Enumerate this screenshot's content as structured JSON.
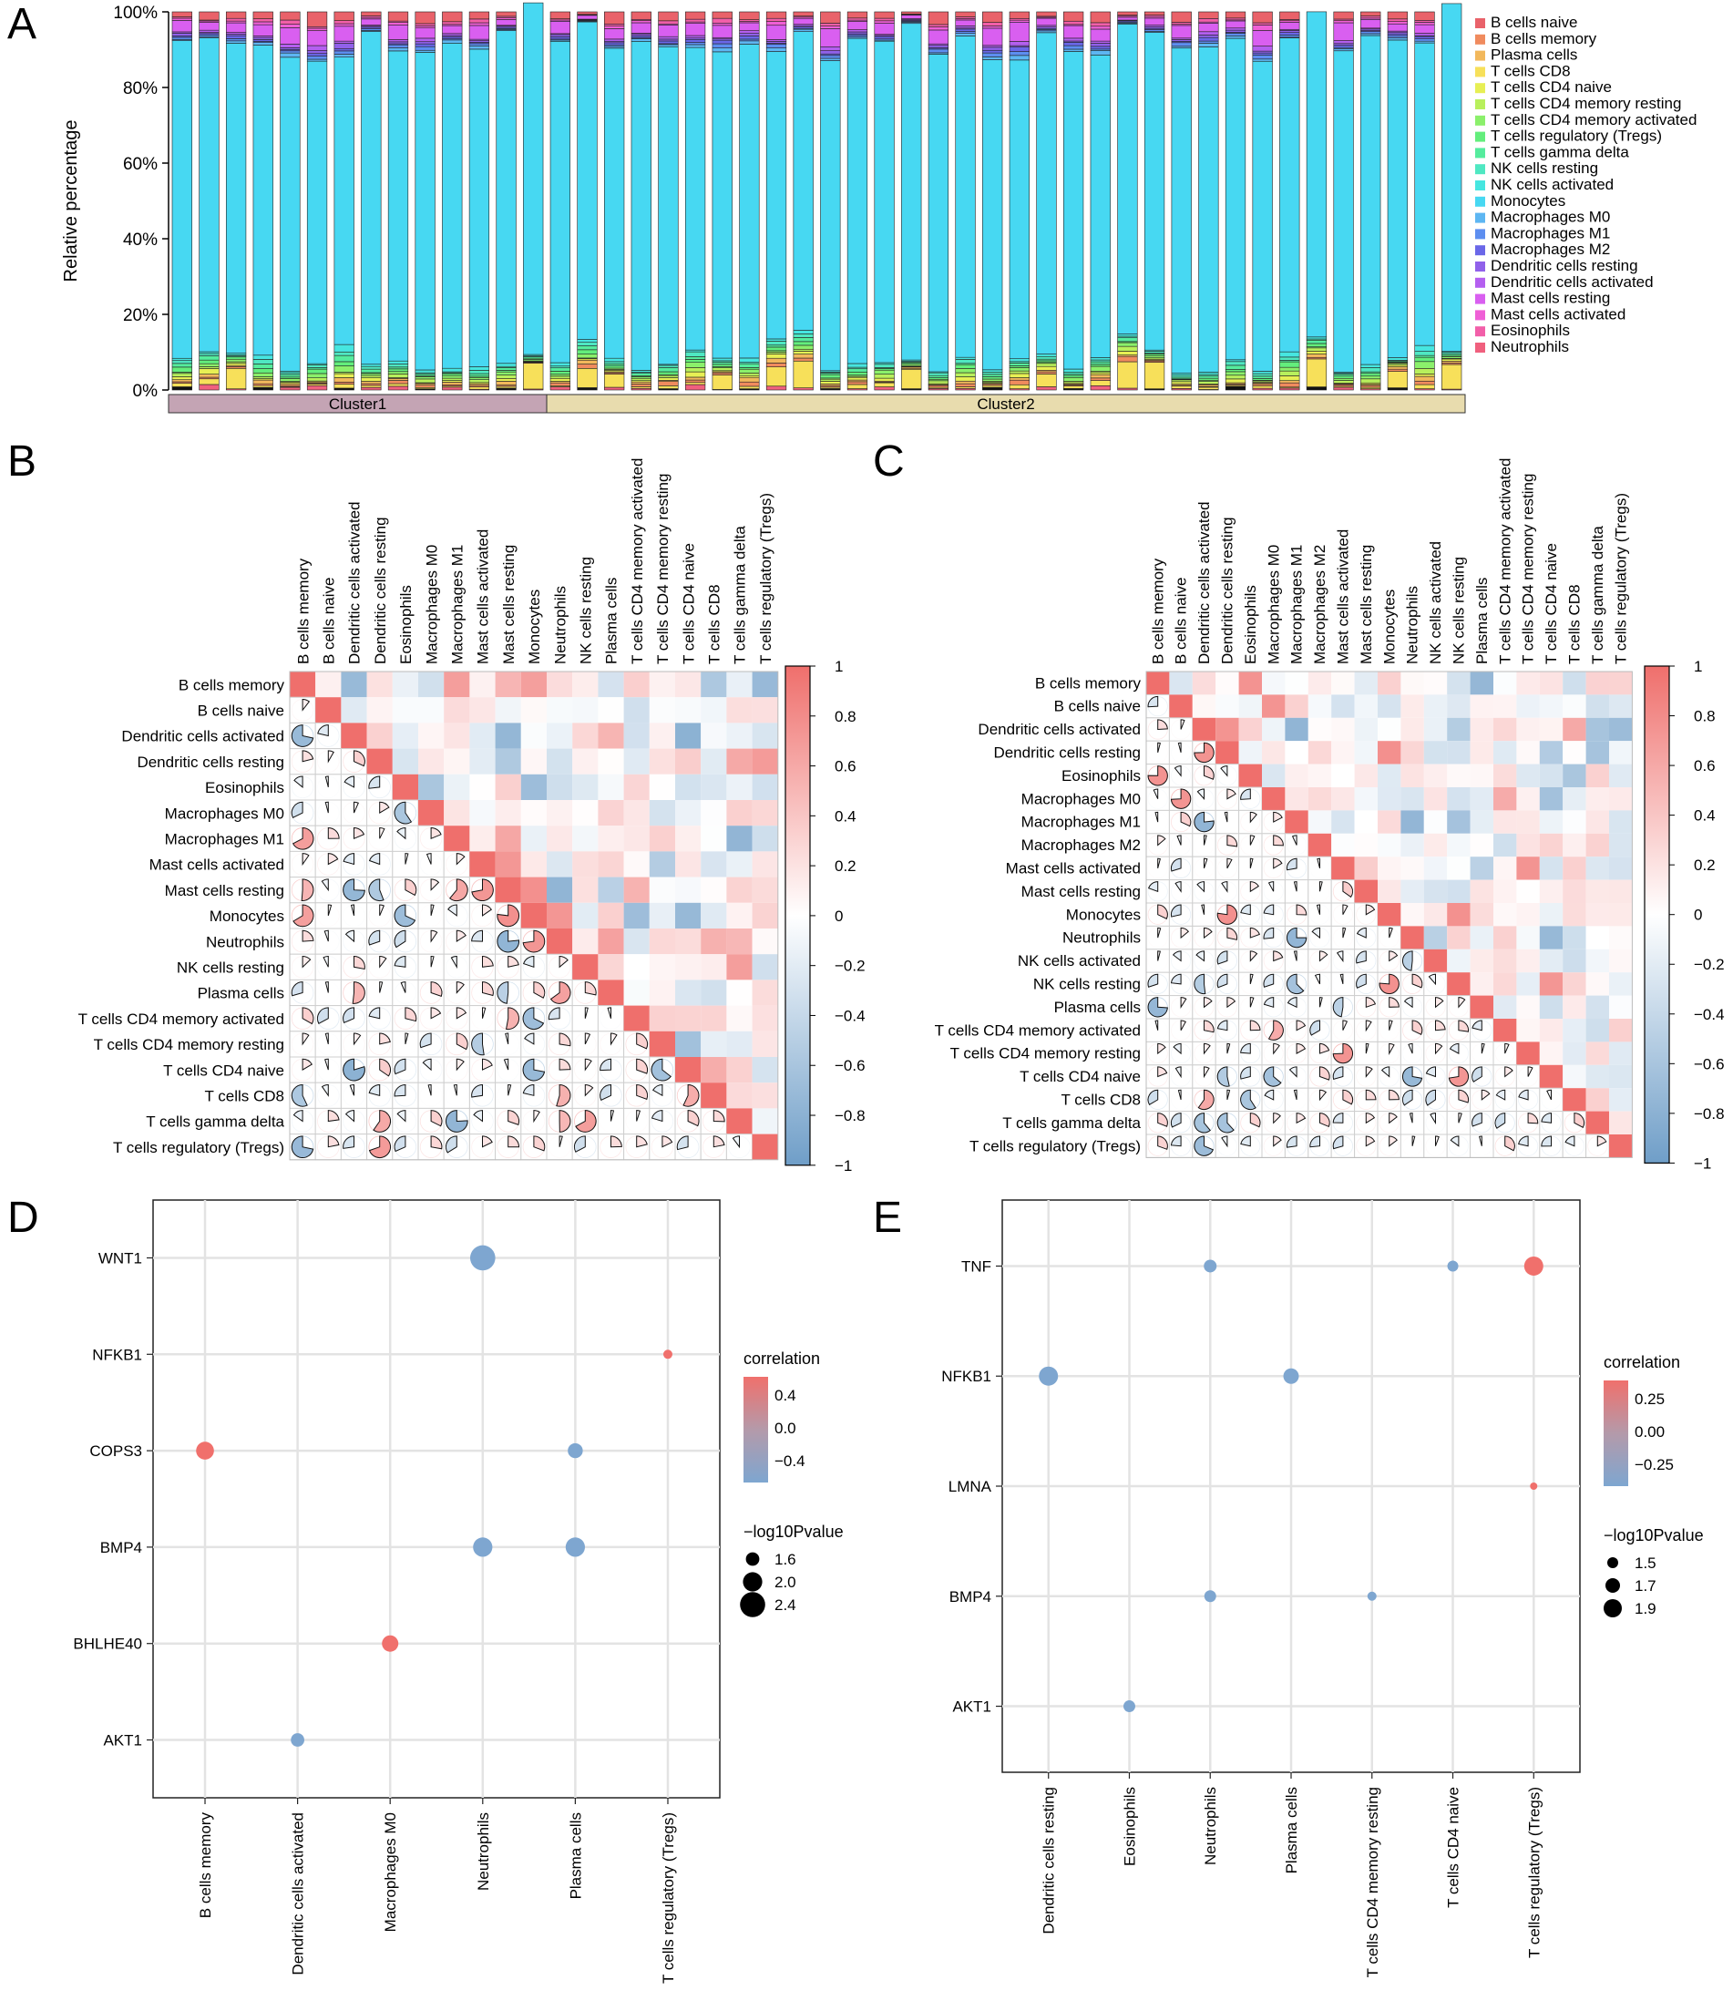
{
  "panels": {
    "A": "A",
    "B": "B",
    "C": "C",
    "D": "D",
    "E": "E"
  },
  "chart_data": [
    {
      "panel": "A",
      "type": "bar",
      "stacked": true,
      "ylabel": "Relative percentage",
      "yticks": [
        "0%",
        "20%",
        "40%",
        "60%",
        "80%",
        "100%"
      ],
      "ylim": [
        0,
        100
      ],
      "clusters": [
        {
          "name": "Cluster1",
          "n": 14,
          "color": "#c4a4b4"
        },
        {
          "name": "Cluster2",
          "n": 34,
          "color": "#e8dcae"
        }
      ],
      "legend": [
        {
          "name": "B cells naive",
          "color": "#e9626a"
        },
        {
          "name": "B cells memory",
          "color": "#f08b5e"
        },
        {
          "name": "Plasma cells",
          "color": "#f2b85c"
        },
        {
          "name": "T cells CD8",
          "color": "#f7e05a"
        },
        {
          "name": "T cells CD4 naive",
          "color": "#e7ef54"
        },
        {
          "name": "T cells CD4 memory resting",
          "color": "#b8f05c"
        },
        {
          "name": "T cells CD4 memory activated",
          "color": "#8bf06b"
        },
        {
          "name": "T cells regulatory (Tregs)",
          "color": "#63ee7c"
        },
        {
          "name": "T cells gamma delta",
          "color": "#55ec9d"
        },
        {
          "name": "NK cells resting",
          "color": "#4fe8c2"
        },
        {
          "name": "NK cells activated",
          "color": "#46e6e0"
        },
        {
          "name": "Monocytes",
          "color": "#47d8f2"
        },
        {
          "name": "Macrophages M0",
          "color": "#5db6f2"
        },
        {
          "name": "Macrophages M1",
          "color": "#5d8ef0"
        },
        {
          "name": "Macrophages M2",
          "color": "#6a67e8"
        },
        {
          "name": "Dendritic cells resting",
          "color": "#9061ea"
        },
        {
          "name": "Dendritic cells activated",
          "color": "#b45ff0"
        },
        {
          "name": "Mast cells resting",
          "color": "#d95ff0"
        },
        {
          "name": "Mast cells activated",
          "color": "#ef5fd6"
        },
        {
          "name": "Eosinophils",
          "color": "#f25fa9"
        },
        {
          "name": "Neutrophils",
          "color": "#f0607e"
        }
      ],
      "monocytes_pct": [
        84,
        83,
        82,
        82,
        83,
        80,
        76,
        88,
        82,
        84,
        86,
        84,
        88,
        93,
        85,
        84,
        82,
        87,
        84,
        80,
        81,
        83,
        76,
        79,
        82,
        86,
        85,
        89,
        84,
        85,
        82,
        79,
        85,
        84,
        80,
        82,
        84,
        86,
        86,
        85,
        82,
        83,
        86,
        85,
        87,
        84,
        80,
        92
      ]
    },
    {
      "panel": "B",
      "type": "heatmap",
      "labels": [
        "B cells memory",
        "B cells naive",
        "Dendritic cells activated",
        "Dendritic cells resting",
        "Eosinophils",
        "Macrophages M0",
        "Macrophages M1",
        "Mast cells activated",
        "Mast cells resting",
        "Monocytes",
        "Neutrophils",
        "NK cells resting",
        "Plasma cells",
        "T cells CD4 memory activated",
        "T cells CD4 memory resting",
        "T cells CD4 naive",
        "T cells CD8",
        "T cells gamma delta",
        "T cells regulatory (Tregs)"
      ],
      "colorbar_ticks": [
        "1",
        "0.8",
        "0.6",
        "0.4",
        "0.2",
        "0",
        "−0.2",
        "−0.4",
        "−0.6",
        "−0.8",
        "−1"
      ],
      "range": [
        -1,
        1
      ]
    },
    {
      "panel": "C",
      "type": "heatmap",
      "labels": [
        "B cells memory",
        "B cells naive",
        "Dendritic cells activated",
        "Dendritic cells resting",
        "Eosinophils",
        "Macrophages M0",
        "Macrophages M1",
        "Macrophages M2",
        "Mast cells activated",
        "Mast cells resting",
        "Monocytes",
        "Neutrophils",
        "NK cells activated",
        "NK cells resting",
        "Plasma cells",
        "T cells CD4 memory activated",
        "T cells CD4 memory resting",
        "T cells CD4 naive",
        "T cells CD8",
        "T cells gamma delta",
        "T cells regulatory (Tregs)"
      ],
      "colorbar_ticks": [
        "1",
        "0.8",
        "0.6",
        "0.4",
        "0.2",
        "0",
        "−0.2",
        "−0.4",
        "−0.6",
        "−0.8",
        "−1"
      ],
      "range": [
        -1,
        1
      ]
    },
    {
      "panel": "D",
      "type": "scatter",
      "genes": [
        "WNT1",
        "NFKB1",
        "COPS3",
        "BMP4",
        "BHLHE40",
        "AKT1"
      ],
      "cells": [
        "B cells memory",
        "Dendritic cells activated",
        "Macrophages M0",
        "Neutrophils",
        "Plasma cells",
        "T cells regulatory (Tregs)"
      ],
      "points": [
        {
          "gene": "WNT1",
          "cell": "Neutrophils",
          "correlation": -0.45,
          "log10p": 2.4
        },
        {
          "gene": "NFKB1",
          "cell": "T cells regulatory (Tregs)",
          "correlation": 0.45,
          "log10p": 1.3
        },
        {
          "gene": "COPS3",
          "cell": "B cells memory",
          "correlation": 0.45,
          "log10p": 1.9
        },
        {
          "gene": "COPS3",
          "cell": "Plasma cells",
          "correlation": -0.45,
          "log10p": 1.7
        },
        {
          "gene": "BMP4",
          "cell": "Neutrophils",
          "correlation": -0.45,
          "log10p": 2.0
        },
        {
          "gene": "BMP4",
          "cell": "Plasma cells",
          "correlation": -0.45,
          "log10p": 2.0
        },
        {
          "gene": "BHLHE40",
          "cell": "Macrophages M0",
          "correlation": 0.45,
          "log10p": 1.8
        },
        {
          "gene": "AKT1",
          "cell": "Dendritic cells activated",
          "correlation": -0.45,
          "log10p": 1.6
        }
      ],
      "legend_title_color": "correlation",
      "color_ticks": [
        "0.4",
        "0.0",
        "−0.4"
      ],
      "legend_title_size": "−log10Pvalue",
      "size_ticks": [
        "1.6",
        "2.0",
        "2.4"
      ]
    },
    {
      "panel": "E",
      "type": "scatter",
      "genes": [
        "TNF",
        "NFKB1",
        "LMNA",
        "BMP4",
        "AKT1"
      ],
      "cells": [
        "Dendritic cells resting",
        "Eosinophils",
        "Neutrophils",
        "Plasma cells",
        "T cells CD4 memory resting",
        "T cells CD4 naive",
        "T cells regulatory (Tregs)"
      ],
      "points": [
        {
          "gene": "TNF",
          "cell": "Neutrophils",
          "correlation": -0.3,
          "log10p": 1.6
        },
        {
          "gene": "TNF",
          "cell": "T cells CD4 naive",
          "correlation": -0.3,
          "log10p": 1.5
        },
        {
          "gene": "TNF",
          "cell": "T cells regulatory (Tregs)",
          "correlation": 0.35,
          "log10p": 1.95
        },
        {
          "gene": "NFKB1",
          "cell": "Dendritic cells resting",
          "correlation": -0.3,
          "log10p": 1.95
        },
        {
          "gene": "NFKB1",
          "cell": "Plasma cells",
          "correlation": -0.3,
          "log10p": 1.75
        },
        {
          "gene": "LMNA",
          "cell": "T cells regulatory (Tregs)",
          "correlation": 0.35,
          "log10p": 1.3
        },
        {
          "gene": "BMP4",
          "cell": "Neutrophils",
          "correlation": -0.3,
          "log10p": 1.55
        },
        {
          "gene": "BMP4",
          "cell": "T cells CD4 memory resting",
          "correlation": -0.3,
          "log10p": 1.4
        },
        {
          "gene": "AKT1",
          "cell": "Eosinophils",
          "correlation": -0.3,
          "log10p": 1.55
        }
      ],
      "legend_title_color": "correlation",
      "color_ticks": [
        "0.25",
        "0.00",
        "−0.25"
      ],
      "legend_title_size": "−log10Pvalue",
      "size_ticks": [
        "1.5",
        "1.7",
        "1.9"
      ]
    }
  ]
}
